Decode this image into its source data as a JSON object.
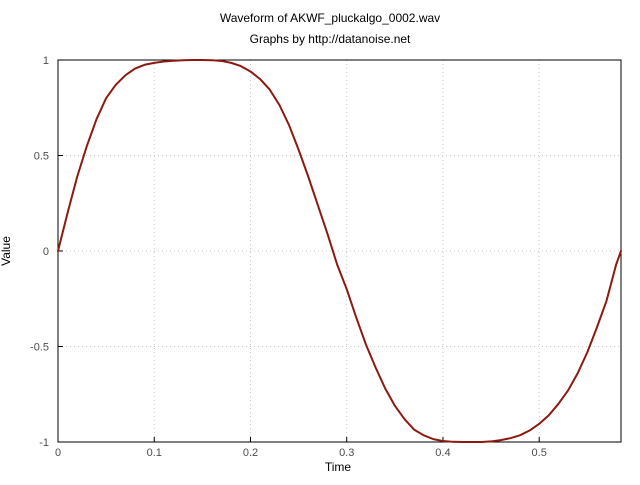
{
  "chart_data": {
    "type": "line",
    "title": "Waveform of AKWF_pluckalgo_0002.wav",
    "subtitle": "Graphs by http://datanoise.net",
    "xlabel": "Time",
    "ylabel": "Value",
    "xlim": [
      0,
      0.585
    ],
    "ylim": [
      -1,
      1
    ],
    "x_ticks": [
      0,
      0.1,
      0.2,
      0.3,
      0.4,
      0.5
    ],
    "x_tick_labels": [
      "0",
      "0.1",
      "0.2",
      "0.3",
      "0.4",
      "0.5"
    ],
    "y_ticks": [
      1,
      0.5,
      0,
      -0.5,
      -1
    ],
    "y_tick_labels": [
      "1",
      "0.5",
      "0",
      "-0.5",
      "-1"
    ],
    "grid": true,
    "series": [
      {
        "color": "#8b1a10",
        "x": [
          0,
          0.01,
          0.02,
          0.03,
          0.04,
          0.05,
          0.06,
          0.07,
          0.08,
          0.09,
          0.1,
          0.11,
          0.12,
          0.13,
          0.14,
          0.15,
          0.16,
          0.17,
          0.18,
          0.19,
          0.2,
          0.21,
          0.22,
          0.23,
          0.24,
          0.25,
          0.26,
          0.27,
          0.28,
          0.29,
          0.3,
          0.31,
          0.32,
          0.33,
          0.34,
          0.35,
          0.36,
          0.37,
          0.38,
          0.39,
          0.4,
          0.41,
          0.42,
          0.43,
          0.44,
          0.45,
          0.46,
          0.47,
          0.48,
          0.49,
          0.5,
          0.51,
          0.52,
          0.53,
          0.54,
          0.55,
          0.56,
          0.57,
          0.58,
          0.585
        ],
        "y": [
          0.0,
          0.2,
          0.39,
          0.55,
          0.69,
          0.8,
          0.87,
          0.92,
          0.955,
          0.975,
          0.985,
          0.992,
          0.996,
          0.999,
          1.0,
          1.0,
          0.999,
          0.995,
          0.985,
          0.968,
          0.94,
          0.9,
          0.845,
          0.765,
          0.66,
          0.53,
          0.39,
          0.24,
          0.09,
          -0.07,
          -0.2,
          -0.35,
          -0.49,
          -0.61,
          -0.72,
          -0.81,
          -0.88,
          -0.935,
          -0.965,
          -0.985,
          -0.995,
          -0.999,
          -1.0,
          -1.0,
          -1.0,
          -0.997,
          -0.99,
          -0.98,
          -0.965,
          -0.94,
          -0.905,
          -0.86,
          -0.8,
          -0.73,
          -0.64,
          -0.53,
          -0.4,
          -0.26,
          -0.07,
          0.0
        ]
      }
    ]
  }
}
